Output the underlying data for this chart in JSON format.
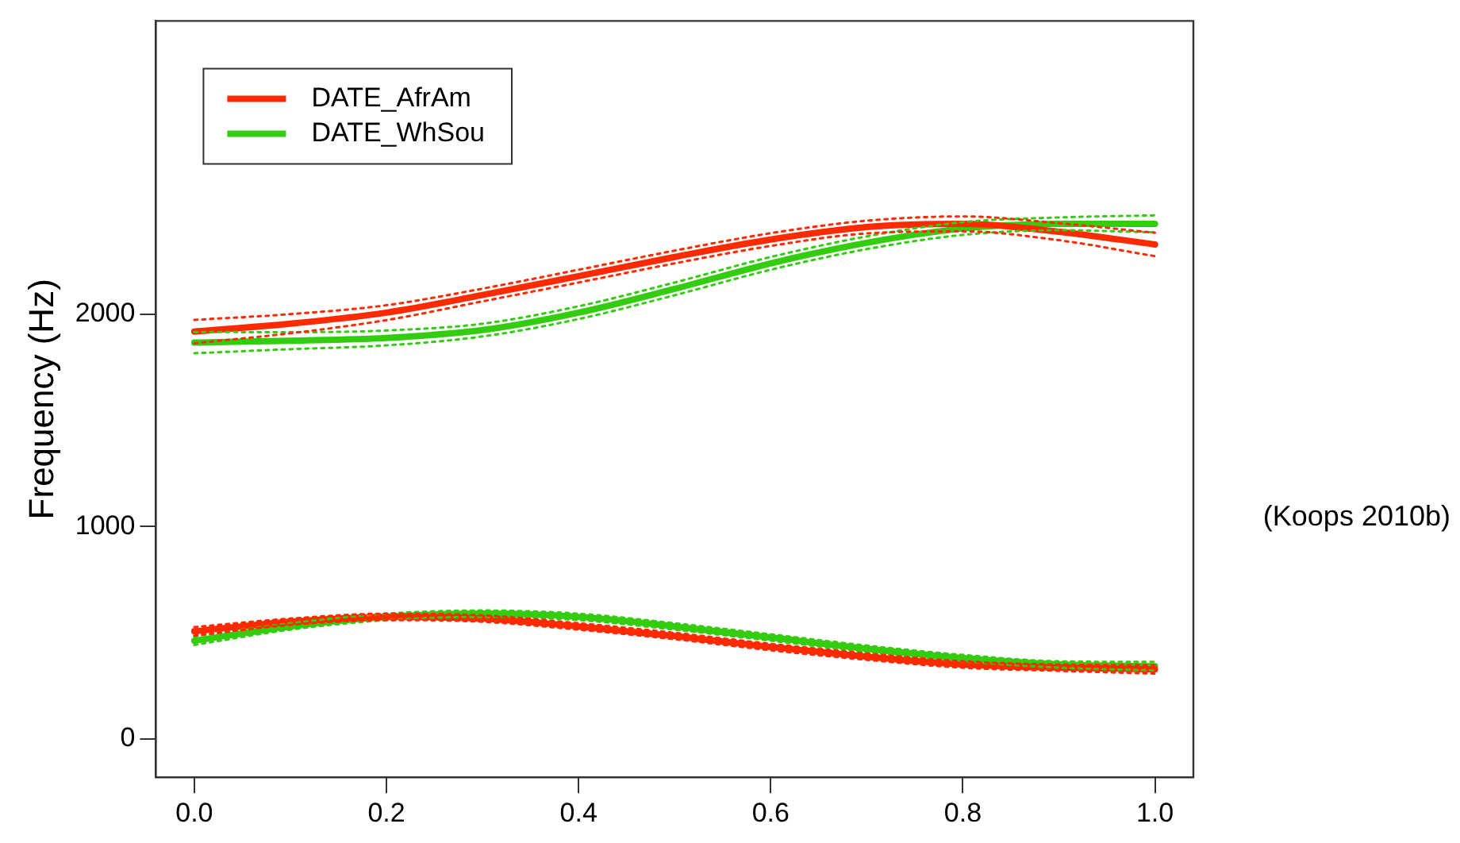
{
  "chart_data": {
    "type": "line",
    "ylabel": "Frequency (Hz)",
    "xlim": [
      -0.04,
      1.04
    ],
    "xticks": [
      {
        "value": 0,
        "label": "0.0"
      },
      {
        "value": 0.2,
        "label": "0.2"
      },
      {
        "value": 0.4,
        "label": "0.4"
      },
      {
        "value": 0.6,
        "label": "0.6"
      },
      {
        "value": 0.8,
        "label": "0.8"
      },
      {
        "value": 1,
        "label": "1.0"
      }
    ],
    "ylim": [
      -180,
      3380
    ],
    "yticks": [
      0,
      1000,
      2000
    ],
    "x": [
      0,
      0.1,
      0.2,
      0.3,
      0.4,
      0.5,
      0.6,
      0.7,
      0.8,
      0.9,
      1.0
    ],
    "series": [
      {
        "name": "DATE_AfrAm",
        "color": "#ff2a00",
        "values": [
          1918,
          1955,
          2007,
          2090,
          2179,
          2269,
          2351,
          2410,
          2425,
          2388,
          2328
        ]
      },
      {
        "color": "#ff2a00",
        "line_style": "dotted",
        "values": [
          1863,
          1910,
          1972,
          2060,
          2149,
          2239,
          2321,
          2380,
          2390,
          2348,
          2273
        ]
      },
      {
        "color": "#ff2a00",
        "line_style": "dotted",
        "values": [
          1973,
          2000,
          2042,
          2120,
          2209,
          2299,
          2381,
          2440,
          2460,
          2428,
          2383
        ]
      },
      {
        "name": "DATE_WhSou",
        "color": "#33cc11",
        "values": [
          1866,
          1875,
          1888,
          1925,
          2007,
          2119,
          2239,
          2336,
          2403,
          2425,
          2425
        ]
      },
      {
        "color": "#33cc11",
        "line_style": "dotted",
        "values": [
          1816,
          1835,
          1853,
          1895,
          1977,
          2089,
          2209,
          2306,
          2373,
          2395,
          2385
        ]
      },
      {
        "color": "#33cc11",
        "line_style": "dotted",
        "values": [
          1916,
          1915,
          1923,
          1955,
          2037,
          2149,
          2269,
          2366,
          2433,
          2455,
          2465
        ]
      },
      {
        "color": "#ff2a00",
        "values": [
          507,
          552,
          575,
          567,
          530,
          485,
          433,
          388,
          351,
          336,
          328
        ]
      },
      {
        "color": "#ff2a00",
        "line_style": "dotted",
        "values": [
          487,
          537,
          560,
          552,
          515,
          470,
          418,
          373,
          336,
          321,
          308
        ]
      },
      {
        "color": "#ff2a00",
        "line_style": "dotted",
        "values": [
          527,
          567,
          590,
          582,
          545,
          500,
          448,
          403,
          366,
          351,
          348
        ]
      },
      {
        "color": "#33cc11",
        "values": [
          463,
          530,
          575,
          590,
          575,
          530,
          478,
          425,
          381,
          351,
          343
        ]
      },
      {
        "color": "#33cc11",
        "line_style": "dotted",
        "values": [
          443,
          515,
          560,
          575,
          560,
          515,
          463,
          410,
          366,
          336,
          323
        ]
      },
      {
        "color": "#33cc11",
        "line_style": "dotted",
        "values": [
          483,
          545,
          590,
          605,
          590,
          545,
          493,
          440,
          396,
          366,
          363
        ]
      }
    ],
    "legend": "top left",
    "grid": false,
    "marker": "none",
    "line_style": "solid",
    "annotations": [
      "(Koops 2010b)"
    ]
  }
}
